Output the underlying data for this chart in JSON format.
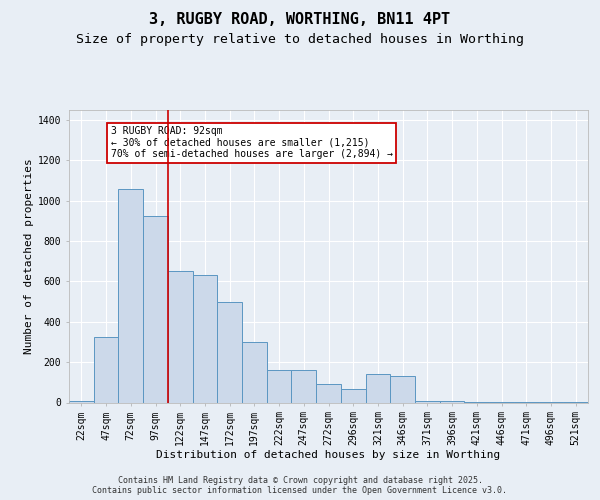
{
  "title": "3, RUGBY ROAD, WORTHING, BN11 4PT",
  "subtitle": "Size of property relative to detached houses in Worthing",
  "xlabel": "Distribution of detached houses by size in Worthing",
  "ylabel": "Number of detached properties",
  "categories": [
    "22sqm",
    "47sqm",
    "72sqm",
    "97sqm",
    "122sqm",
    "147sqm",
    "172sqm",
    "197sqm",
    "222sqm",
    "247sqm",
    "272sqm",
    "296sqm",
    "321sqm",
    "346sqm",
    "371sqm",
    "396sqm",
    "421sqm",
    "446sqm",
    "471sqm",
    "496sqm",
    "521sqm"
  ],
  "values": [
    5,
    325,
    1060,
    925,
    650,
    630,
    500,
    300,
    160,
    160,
    90,
    65,
    140,
    130,
    5,
    5,
    4,
    4,
    4,
    3,
    2
  ],
  "bar_color": "#ccd9ea",
  "bar_edge_color": "#5b96c2",
  "background_color": "#e8eef5",
  "grid_color": "#ffffff",
  "red_line_index": 3,
  "annotation_text": "3 RUGBY ROAD: 92sqm\n← 30% of detached houses are smaller (1,215)\n70% of semi-detached houses are larger (2,894) →",
  "annotation_box_color": "#ffffff",
  "annotation_box_edge": "#cc0000",
  "ylim": [
    0,
    1450
  ],
  "yticks": [
    0,
    200,
    400,
    600,
    800,
    1000,
    1200,
    1400
  ],
  "footer": "Contains HM Land Registry data © Crown copyright and database right 2025.\nContains public sector information licensed under the Open Government Licence v3.0.",
  "title_fontsize": 11,
  "subtitle_fontsize": 9.5,
  "tick_fontsize": 7,
  "label_fontsize": 8,
  "footer_fontsize": 6
}
